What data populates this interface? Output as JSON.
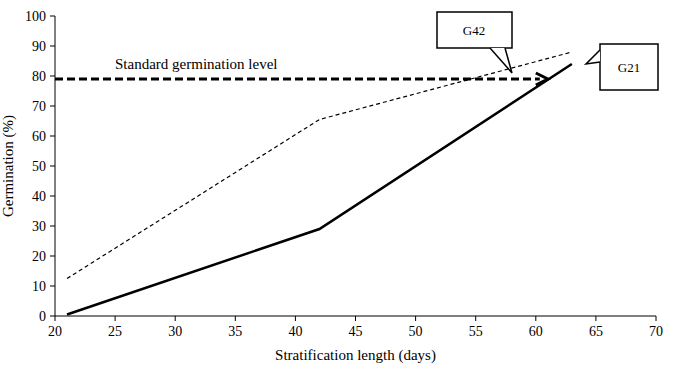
{
  "chart_data": {
    "type": "line",
    "x_label": "Stratification length (days)",
    "y_label": "Germination (%)",
    "x": [
      21,
      42,
      63
    ],
    "series": [
      {
        "name": "G42",
        "color": "#000000",
        "line_style": "dashed",
        "values": [
          12.5,
          65.5,
          88
        ]
      },
      {
        "name": "G21",
        "color": "#000000",
        "line_style": "solid",
        "values": [
          0.5,
          29,
          84
        ]
      }
    ],
    "annotations": [
      {
        "text": "Standard germination level",
        "y": 79,
        "x": [
          20,
          61
        ]
      }
    ],
    "xlim": [
      20,
      70
    ],
    "xticks": [
      20,
      25,
      30,
      35,
      40,
      45,
      50,
      55,
      60,
      65,
      70
    ],
    "ylim": [
      0,
      100
    ],
    "yticks": [
      0,
      10,
      20,
      30,
      40,
      50,
      60,
      70,
      80,
      90,
      100
    ],
    "grid": false
  }
}
